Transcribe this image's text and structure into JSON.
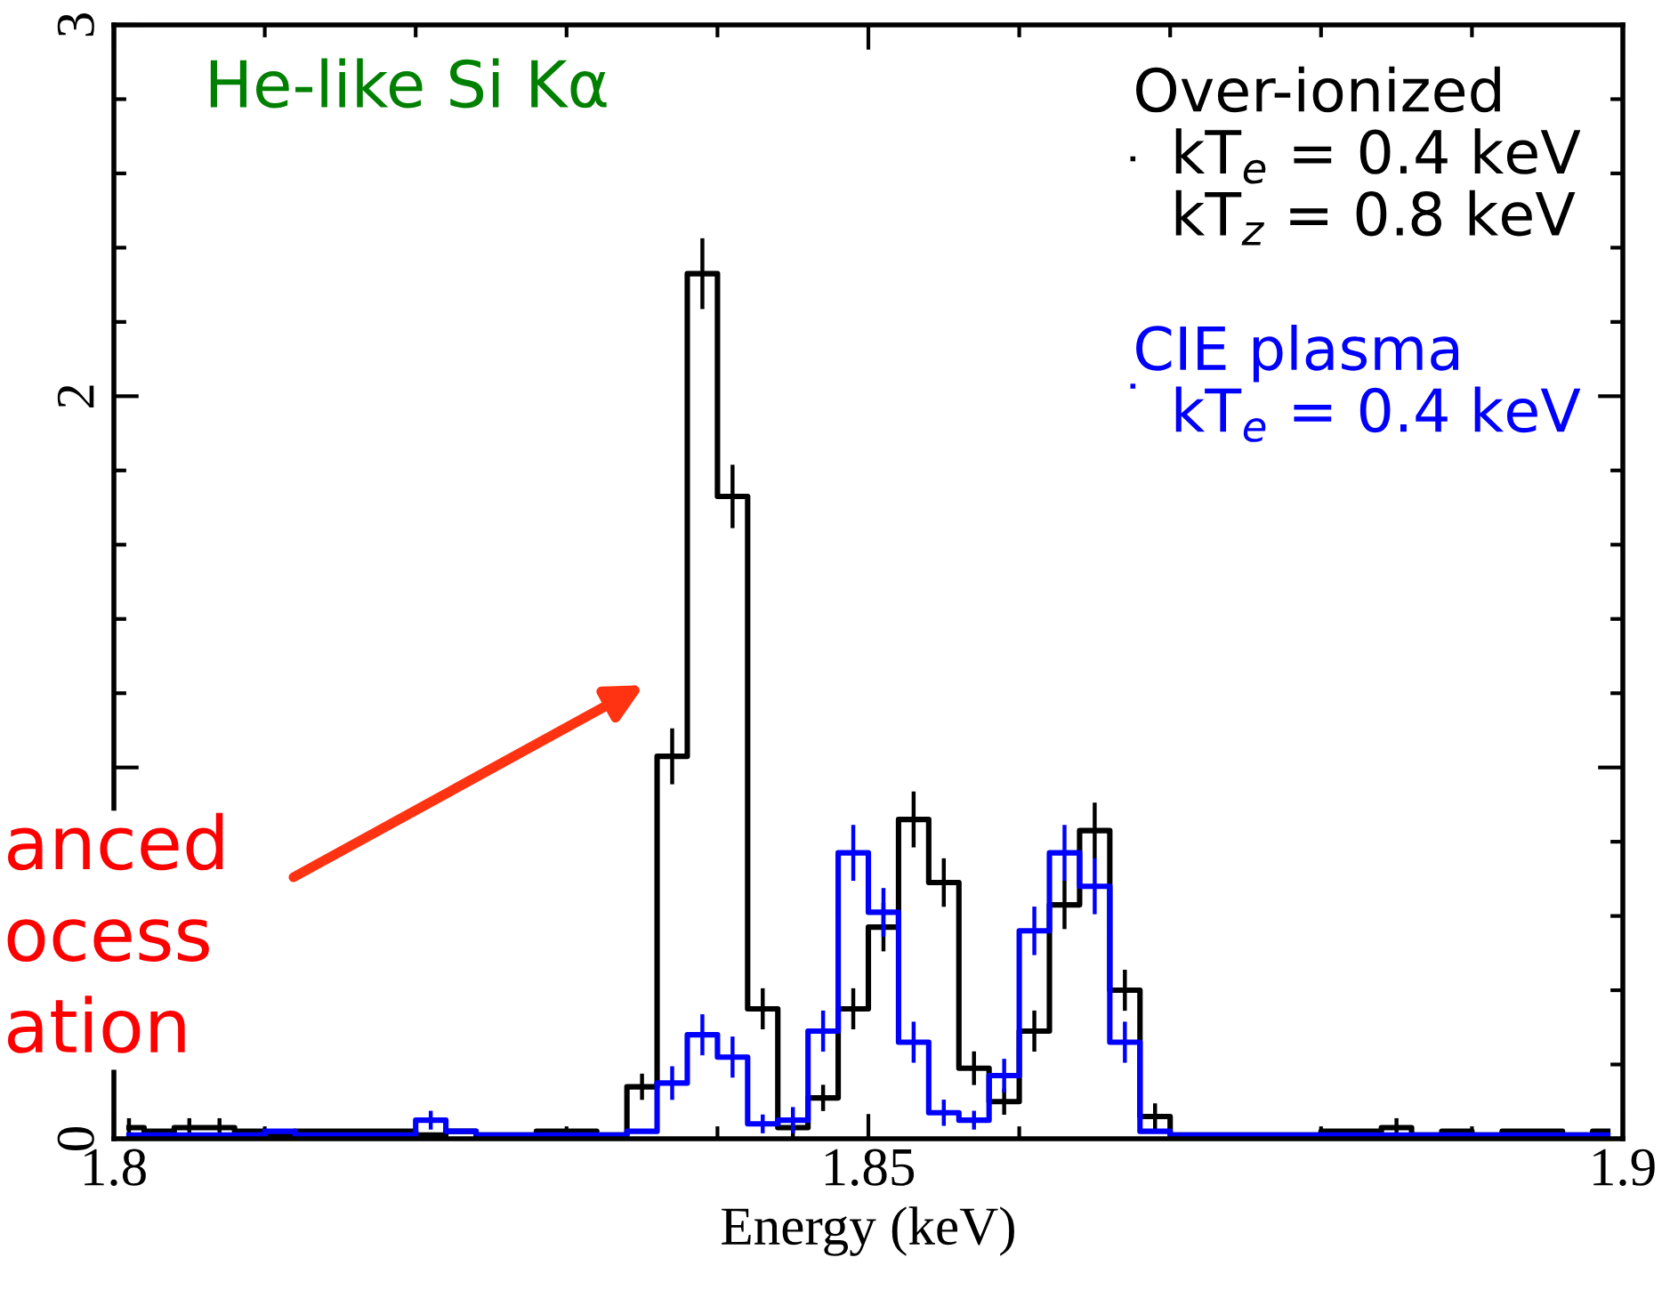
{
  "chart_data": {
    "type": "step",
    "xlabel": "Energy (keV)",
    "x": [
      1.801,
      1.803,
      1.805,
      1.807,
      1.809,
      1.811,
      1.813,
      1.815,
      1.817,
      1.819,
      1.821,
      1.823,
      1.825,
      1.827,
      1.829,
      1.831,
      1.833,
      1.835,
      1.837,
      1.839,
      1.841,
      1.843,
      1.845,
      1.847,
      1.849,
      1.851,
      1.853,
      1.855,
      1.857,
      1.859,
      1.861,
      1.863,
      1.865,
      1.867,
      1.869,
      1.871,
      1.873,
      1.875,
      1.877,
      1.879,
      1.881,
      1.883,
      1.885,
      1.887,
      1.889,
      1.891,
      1.893,
      1.895,
      1.897,
      1.899
    ],
    "series": [
      {
        "name": "Over-ionized\n  kT$_{e}$ = 0.4 keV\n  kT$_{z}$ = 0.8 keV",
        "color": "#000000",
        "values": [
          0.03,
          0.02,
          0.03,
          0.03,
          0.02,
          0.01,
          0.02,
          0.02,
          0.02,
          0.02,
          0.01,
          0.02,
          0.01,
          0.01,
          0.02,
          0.02,
          0.01,
          0.14,
          1.03,
          2.33,
          1.73,
          0.35,
          0.03,
          0.11,
          0.35,
          0.57,
          0.86,
          0.69,
          0.19,
          0.1,
          0.29,
          0.63,
          0.83,
          0.4,
          0.06,
          0.01,
          0.01,
          0.01,
          0.01,
          0.01,
          0.02,
          0.02,
          0.03,
          0.01,
          0.02,
          0.01,
          0.02,
          0.02,
          0.01,
          0.02
        ],
        "errors": [
          0.02,
          null,
          0.02,
          0.02,
          null,
          null,
          null,
          null,
          null,
          null,
          null,
          null,
          null,
          null,
          null,
          null,
          null,
          0.03,
          0.07,
          0.09,
          0.08,
          0.05,
          0.02,
          0.03,
          0.05,
          0.06,
          0.07,
          0.06,
          0.04,
          0.03,
          0.05,
          0.06,
          0.07,
          0.05,
          0.03,
          null,
          null,
          null,
          null,
          null,
          null,
          null,
          0.02,
          null,
          null,
          null,
          null,
          null,
          null,
          null
        ]
      },
      {
        "name": "CIE plasma\n  kT$_{e}$ = 0.4 keV",
        "color": "#0000ff",
        "values": [
          0.01,
          0.01,
          0.01,
          0.01,
          0.01,
          0.02,
          0.01,
          0.01,
          0.01,
          0.01,
          0.05,
          0.02,
          0.01,
          0.01,
          0.01,
          0.01,
          0.01,
          0.02,
          0.15,
          0.28,
          0.22,
          0.04,
          0.05,
          0.29,
          0.77,
          0.61,
          0.26,
          0.07,
          0.05,
          0.17,
          0.56,
          0.77,
          0.68,
          0.26,
          0.02,
          0.01,
          0.01,
          0.01,
          0.01,
          0.01,
          0.01,
          0.01,
          0.01,
          0.01,
          0.01,
          0.01,
          0.01,
          0.01,
          0.01,
          0.01
        ],
        "errors": [
          null,
          null,
          null,
          null,
          null,
          null,
          null,
          null,
          null,
          null,
          0.02,
          null,
          null,
          null,
          null,
          null,
          null,
          null,
          0.04,
          0.05,
          0.05,
          0.02,
          0.03,
          0.05,
          0.07,
          0.06,
          0.05,
          0.03,
          0.02,
          0.04,
          0.06,
          0.07,
          0.07,
          0.05,
          null,
          null,
          null,
          null,
          null,
          null,
          null,
          null,
          null,
          null,
          null,
          null,
          null,
          null,
          null,
          null
        ]
      }
    ],
    "xlim": [
      1.8,
      1.9
    ],
    "xticks": [
      1.8,
      1.85,
      1.9
    ],
    "ylim": [
      0,
      3
    ],
    "yticks": [
      0,
      {
        "value": 1,
        "label": null
      },
      2,
      3
    ],
    "grid": false,
    "legend": "top right",
    "annotations": [
      "He-like Si Kα",
      "anced\nocess\nation"
    ]
  }
}
